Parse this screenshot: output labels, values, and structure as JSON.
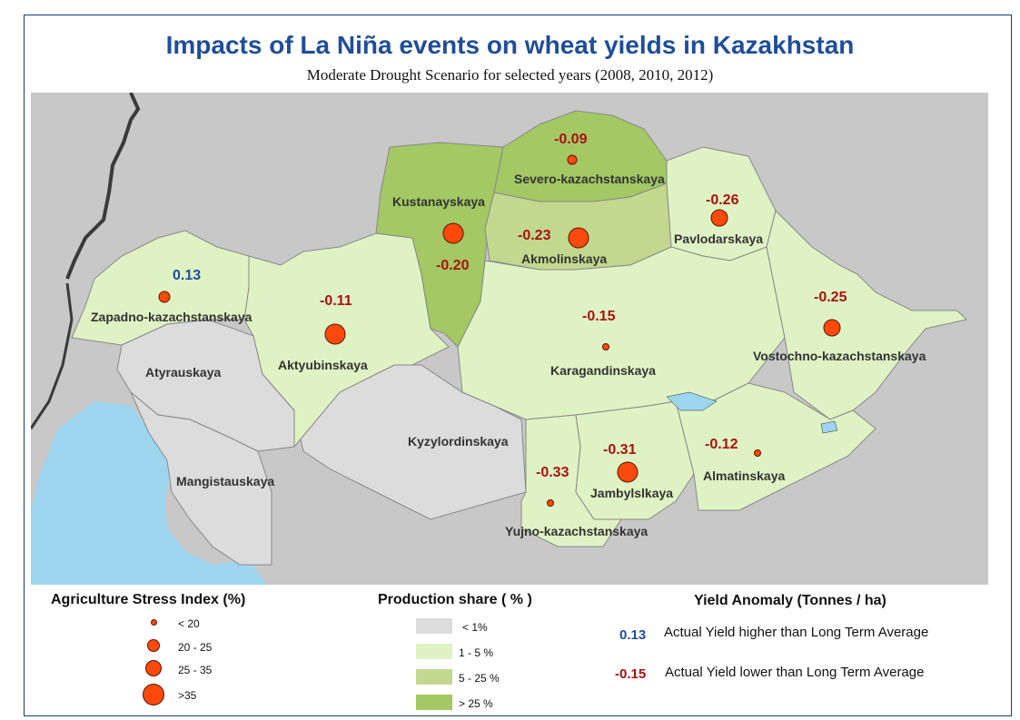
{
  "title": "Impacts of La Niña events on wheat yields in Kazakhstan",
  "subtitle": "Moderate Drought Scenario for selected years (2008, 2010, 2012)",
  "colors": {
    "background": "#c8c8c8",
    "water": "#9dd5ef",
    "share_lt1": "#dcdcdc",
    "share_1_5": "#dff2c4",
    "share_5_25": "#c2d88f",
    "share_gt25": "#a3c864",
    "dot": "#fb4a0c",
    "anomaly_negative": "#a8120f",
    "anomaly_positive": "#1f4e99"
  },
  "regions": [
    {
      "name": "Zapadno-kazachstanskaya",
      "anomaly": "0.13",
      "share_class": "1 - 5 %",
      "stress_class": "20 - 25"
    },
    {
      "name": "Aktyubinskaya",
      "anomaly": "-0.11",
      "share_class": "1 - 5 %",
      "stress_class": ">35"
    },
    {
      "name": "Kustanayskaya",
      "anomaly": "-0.20",
      "share_class": "> 25 %",
      "stress_class": ">35"
    },
    {
      "name": "Severo-kazachstanskaya",
      "anomaly": "-0.09",
      "share_class": "> 25 %",
      "stress_class": "20 - 25"
    },
    {
      "name": "Akmolinskaya",
      "anomaly": "-0.23",
      "share_class": "5 - 25 %",
      "stress_class": ">35"
    },
    {
      "name": "Pavlodarskaya",
      "anomaly": "-0.26",
      "share_class": "1 - 5 %",
      "stress_class": "25 - 35"
    },
    {
      "name": "Karagandinskaya",
      "anomaly": "-0.15",
      "share_class": "1 - 5 %",
      "stress_class": "< 20"
    },
    {
      "name": "Vostochno-kazachstanskaya",
      "anomaly": "-0.25",
      "share_class": "1 - 5 %",
      "stress_class": "25 - 35"
    },
    {
      "name": "Atyrauskaya",
      "anomaly": "",
      "share_class": "< 1%",
      "stress_class": ""
    },
    {
      "name": "Mangistauskaya",
      "anomaly": "",
      "share_class": "< 1%",
      "stress_class": ""
    },
    {
      "name": "Kyzylordinskaya",
      "anomaly": "",
      "share_class": "< 1%",
      "stress_class": ""
    },
    {
      "name": "Yujno-kazachstanskaya",
      "anomaly": "-0.33",
      "share_class": "1 - 5 %",
      "stress_class": "< 20"
    },
    {
      "name": "Jambylslkaya",
      "anomaly": "-0.31",
      "share_class": "1 - 5 %",
      "stress_class": ">35"
    },
    {
      "name": "Almatinskaya",
      "anomaly": "-0.12",
      "share_class": "1 - 5 %",
      "stress_class": "< 20"
    }
  ],
  "legend": {
    "stress": {
      "title": "Agriculture Stress Index (%)",
      "items": [
        "< 20",
        "20 - 25",
        "25 - 35",
        ">35"
      ]
    },
    "share": {
      "title": "Production share ( % )",
      "items": [
        "< 1%",
        "1 - 5 %",
        "5 - 25 %",
        "> 25 %"
      ]
    },
    "anomaly": {
      "title": "Yield Anomaly (Tonnes / ha)",
      "positive_value": "0.13",
      "positive_text": "Actual Yield higher than Long Term Average",
      "negative_value": "-0.15",
      "negative_text": "Actual Yield lower than Long Term Average"
    }
  }
}
